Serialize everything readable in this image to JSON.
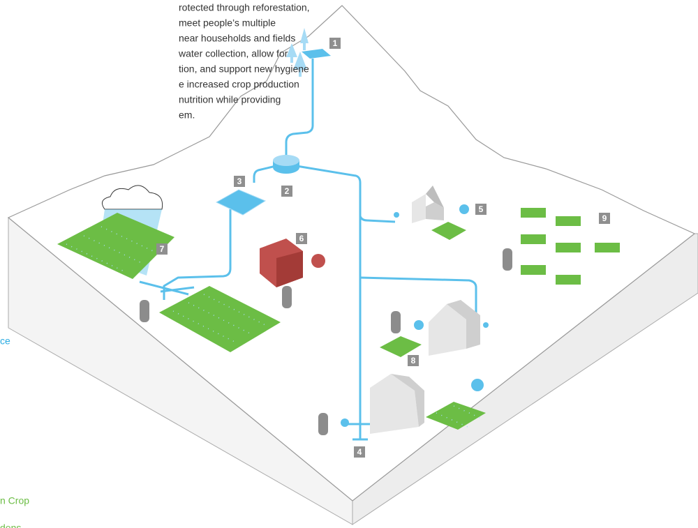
{
  "intro_lines": [
    "rotected through reforestation,",
    "meet people’s multiple",
    "near households and fields",
    "water collection, allow for",
    "tion, and support new hygiene",
    "e increased crop production",
    "nutrition while providing",
    "em."
  ],
  "markers": [
    "1",
    "2",
    "3",
    "4",
    "5",
    "6",
    "7",
    "8",
    "9"
  ],
  "legend_fragments": [
    "ce",
    "n Crop",
    "dens"
  ]
}
